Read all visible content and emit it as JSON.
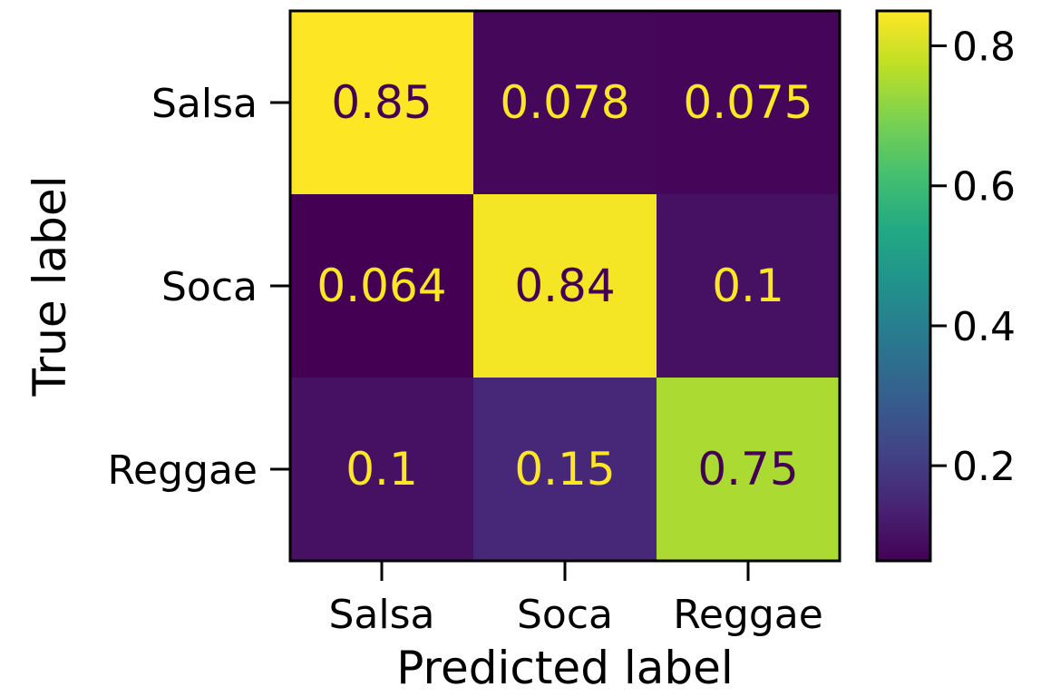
{
  "chart_data": {
    "type": "heatmap",
    "title": "",
    "xlabel": "Predicted label",
    "ylabel": "True label",
    "x_categories": [
      "Salsa",
      "Soca",
      "Reggae"
    ],
    "y_categories": [
      "Salsa",
      "Soca",
      "Reggae"
    ],
    "values": [
      [
        0.85,
        0.078,
        0.075
      ],
      [
        0.064,
        0.84,
        0.1
      ],
      [
        0.1,
        0.15,
        0.75
      ]
    ],
    "value_labels": [
      [
        "0.85",
        "0.078",
        "0.075"
      ],
      [
        "0.064",
        "0.84",
        "0.1"
      ],
      [
        "0.1",
        "0.15",
        "0.75"
      ]
    ],
    "colormap": "viridis",
    "vmin": 0.064,
    "vmax": 0.85,
    "colorbar": {
      "ticks": [
        0.2,
        0.4,
        0.6,
        0.8
      ],
      "tick_labels": [
        "0.2",
        "0.4",
        "0.6",
        "0.8"
      ]
    },
    "grid": false
  }
}
